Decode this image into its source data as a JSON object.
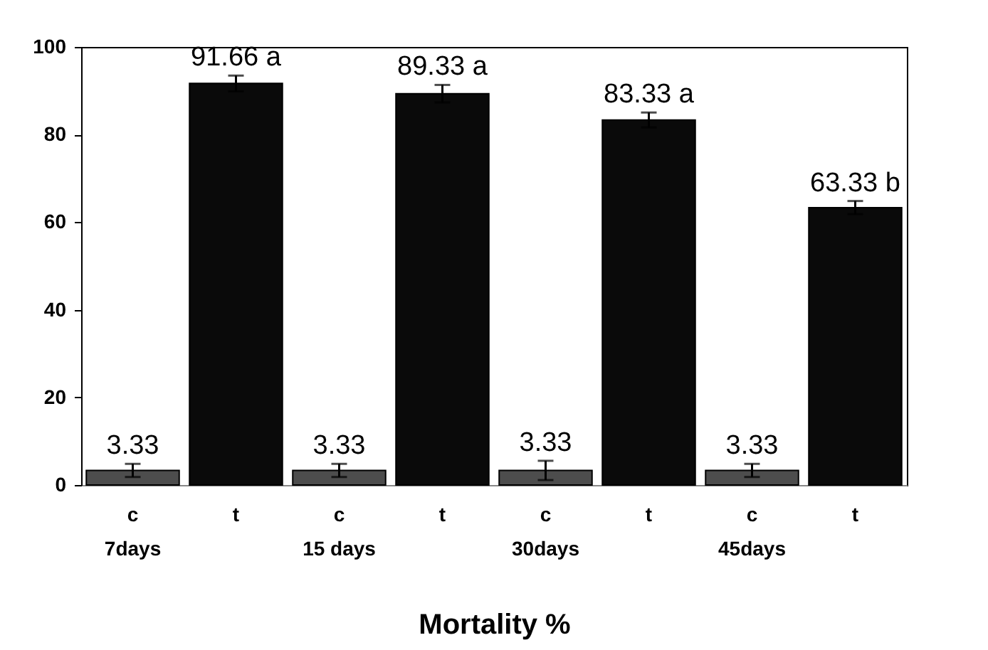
{
  "chart_data": {
    "type": "bar",
    "xlabel": "Mortality %",
    "categories": [
      "c\n7days",
      "t",
      "c\n15 days",
      "t",
      "c\n30days",
      "t",
      "c\n45days",
      "t"
    ],
    "values": [
      3.33,
      91.66,
      3.33,
      89.33,
      3.33,
      83.33,
      3.33,
      63.33
    ],
    "colors": [
      "#4d4d4d",
      "#0a0a0a",
      "#4d4d4d",
      "#0a0a0a",
      "#4d4d4d",
      "#0a0a0a",
      "#4d4d4d",
      "#0a0a0a"
    ],
    "errors": [
      1.5,
      1.8,
      1.5,
      2,
      2.2,
      1.7,
      1.5,
      1.5
    ],
    "value_labels": [
      "3.33",
      "91.66 a",
      "3.33",
      "89.33 a",
      "3.33",
      "83.33 a",
      "3.33",
      "63.33 b"
    ],
    "ylim": [
      0,
      100
    ],
    "yticks": [
      0,
      20,
      40,
      60,
      80,
      100
    ],
    "grid": false
  }
}
